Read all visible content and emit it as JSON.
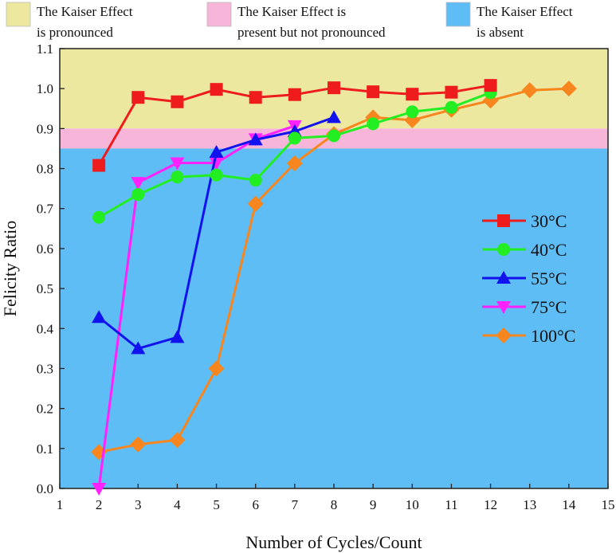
{
  "chart_data": {
    "type": "line",
    "title": "",
    "xlabel": "Number of Cycles/Count",
    "ylabel": "Felicity Ratio",
    "xlim": [
      1,
      15
    ],
    "ylim": [
      0.0,
      1.1
    ],
    "x_ticks": [
      1,
      2,
      3,
      4,
      5,
      6,
      7,
      8,
      9,
      10,
      11,
      12,
      13,
      14,
      15
    ],
    "y_ticks": [
      "0.0",
      "0.1",
      "0.2",
      "0.3",
      "0.4",
      "0.5",
      "0.6",
      "0.7",
      "0.8",
      "0.9",
      "1.0",
      "1.1"
    ],
    "regions": [
      {
        "name": "pronounced",
        "lines": [
          "The Kaiser Effect",
          "is pronounced"
        ],
        "y_range": [
          0.9,
          1.1
        ],
        "color": "#ede8a0"
      },
      {
        "name": "present",
        "lines": [
          "The Kaiser Effect is",
          "present but not pronounced"
        ],
        "y_range": [
          0.85,
          0.9
        ],
        "color": "#f7b6d9"
      },
      {
        "name": "absent",
        "lines": [
          "The Kaiser Effect",
          "is absent"
        ],
        "y_range": [
          0.0,
          0.85
        ],
        "color": "#5ebdf5"
      }
    ],
    "legend_position": "right",
    "series": [
      {
        "name": "30°C",
        "color": "#ee1c1c",
        "marker": "square",
        "x": [
          2,
          3,
          4,
          5,
          6,
          7,
          8,
          9,
          10,
          11,
          12
        ],
        "values": [
          0.808,
          0.978,
          0.967,
          0.998,
          0.978,
          0.985,
          1.002,
          0.992,
          0.986,
          0.991,
          1.008
        ]
      },
      {
        "name": "40°C",
        "color": "#22ee22",
        "marker": "circle",
        "x": [
          2,
          3,
          4,
          5,
          6,
          7,
          8,
          9,
          10,
          11,
          12
        ],
        "values": [
          0.678,
          0.735,
          0.779,
          0.784,
          0.771,
          0.876,
          0.882,
          0.912,
          0.942,
          0.953,
          0.99
        ]
      },
      {
        "name": "55°C",
        "color": "#1212ee",
        "marker": "triangle-up",
        "x": [
          2,
          3,
          4,
          5,
          6,
          7,
          8
        ],
        "values": [
          0.428,
          0.35,
          0.378,
          0.841,
          0.872,
          0.893,
          0.928
        ]
      },
      {
        "name": "75°C",
        "color": "#ff22ff",
        "marker": "triangle-down",
        "x": [
          2,
          3,
          4,
          5,
          6,
          7
        ],
        "values": [
          0.0,
          0.765,
          0.814,
          0.814,
          0.874,
          0.907
        ]
      },
      {
        "name": "100°C",
        "color": "#f7861e",
        "marker": "diamond",
        "x": [
          2,
          3,
          4,
          5,
          6,
          7,
          8,
          9,
          10,
          11,
          12,
          13,
          14
        ],
        "values": [
          0.091,
          0.11,
          0.121,
          0.3,
          0.712,
          0.813,
          0.886,
          0.928,
          0.921,
          0.947,
          0.97,
          0.996,
          1.0
        ]
      }
    ]
  }
}
